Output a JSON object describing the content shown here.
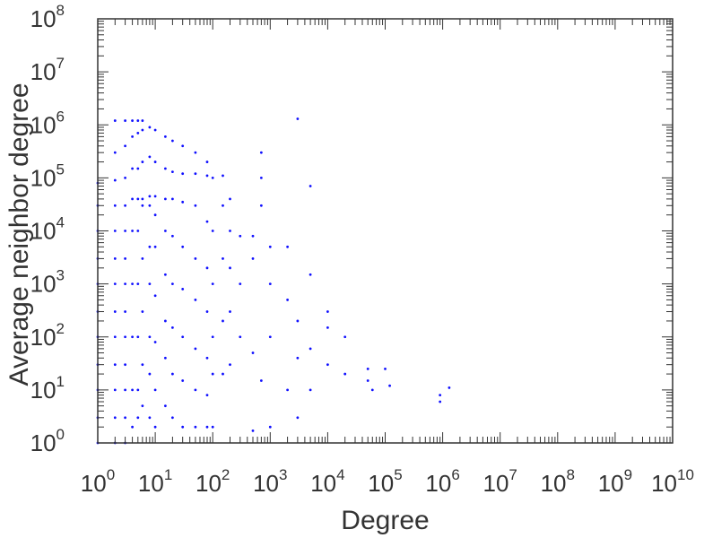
{
  "chart_data": {
    "type": "scatter",
    "title": "",
    "xlabel": "Degree",
    "ylabel": "Average neighbor degree",
    "x_scale": "log",
    "y_scale": "log",
    "xlim": [
      1,
      10000000000
    ],
    "ylim": [
      1,
      100000000
    ],
    "grid": false,
    "legend": "none",
    "marker_color": "#1010ff",
    "x_ticks": [
      {
        "base": "10",
        "exp": "0"
      },
      {
        "base": "10",
        "exp": "1"
      },
      {
        "base": "10",
        "exp": "2"
      },
      {
        "base": "10",
        "exp": "3"
      },
      {
        "base": "10",
        "exp": "4"
      },
      {
        "base": "10",
        "exp": "5"
      },
      {
        "base": "10",
        "exp": "6"
      },
      {
        "base": "10",
        "exp": "7"
      },
      {
        "base": "10",
        "exp": "8"
      },
      {
        "base": "10",
        "exp": "9"
      },
      {
        "base": "10",
        "exp": "10"
      }
    ],
    "y_ticks": [
      {
        "base": "10",
        "exp": "0"
      },
      {
        "base": "10",
        "exp": "1"
      },
      {
        "base": "10",
        "exp": "2"
      },
      {
        "base": "10",
        "exp": "3"
      },
      {
        "base": "10",
        "exp": "4"
      },
      {
        "base": "10",
        "exp": "5"
      },
      {
        "base": "10",
        "exp": "6"
      },
      {
        "base": "10",
        "exp": "7"
      },
      {
        "base": "10",
        "exp": "8"
      }
    ],
    "points": [
      [
        1,
        1
      ],
      [
        1,
        3
      ],
      [
        1,
        10
      ],
      [
        1,
        30
      ],
      [
        1,
        100
      ],
      [
        1,
        300
      ],
      [
        1,
        1000
      ],
      [
        1,
        3000
      ],
      [
        1,
        10000
      ],
      [
        1,
        30000
      ],
      [
        1,
        80000
      ],
      [
        2,
        1
      ],
      [
        2,
        3
      ],
      [
        2,
        10
      ],
      [
        2,
        30
      ],
      [
        2,
        100
      ],
      [
        2,
        300
      ],
      [
        2,
        1000
      ],
      [
        2,
        3000
      ],
      [
        2,
        10000
      ],
      [
        2,
        30000
      ],
      [
        2,
        90000
      ],
      [
        2,
        300000
      ],
      [
        2,
        1200000
      ],
      [
        3,
        1
      ],
      [
        3,
        3
      ],
      [
        3,
        10
      ],
      [
        3,
        30
      ],
      [
        3,
        100
      ],
      [
        3,
        300
      ],
      [
        3,
        1000
      ],
      [
        3,
        3000
      ],
      [
        3,
        10000
      ],
      [
        3,
        30000
      ],
      [
        3,
        100000
      ],
      [
        3,
        400000
      ],
      [
        3,
        1200000
      ],
      [
        4,
        2
      ],
      [
        4,
        10
      ],
      [
        4,
        100
      ],
      [
        4,
        1000
      ],
      [
        4,
        10000
      ],
      [
        4,
        40000
      ],
      [
        4,
        150000
      ],
      [
        4,
        600000
      ],
      [
        4,
        1200000
      ],
      [
        5,
        3
      ],
      [
        5,
        10
      ],
      [
        5,
        100
      ],
      [
        5,
        1000
      ],
      [
        5,
        10000
      ],
      [
        5,
        40000
      ],
      [
        5,
        150000
      ],
      [
        5,
        700000
      ],
      [
        5,
        1200000
      ],
      [
        6,
        5
      ],
      [
        6,
        30
      ],
      [
        6,
        300
      ],
      [
        6,
        3000
      ],
      [
        6,
        30000
      ],
      [
        6,
        40000
      ],
      [
        6,
        200000
      ],
      [
        6,
        800000
      ],
      [
        6,
        1200000
      ],
      [
        8,
        3
      ],
      [
        8,
        20
      ],
      [
        8,
        100
      ],
      [
        8,
        1000
      ],
      [
        8,
        5000
      ],
      [
        8,
        30000
      ],
      [
        8,
        45000
      ],
      [
        8,
        250000
      ],
      [
        8,
        900000
      ],
      [
        10,
        2
      ],
      [
        10,
        10
      ],
      [
        10,
        80
      ],
      [
        10,
        600
      ],
      [
        10,
        5000
      ],
      [
        10,
        20000
      ],
      [
        10,
        45000
      ],
      [
        10,
        200000
      ],
      [
        10,
        800000
      ],
      [
        15,
        5
      ],
      [
        15,
        40
      ],
      [
        15,
        200
      ],
      [
        15,
        1500
      ],
      [
        15,
        10000
      ],
      [
        15,
        40000
      ],
      [
        15,
        150000
      ],
      [
        15,
        600000
      ],
      [
        20,
        3
      ],
      [
        20,
        20
      ],
      [
        20,
        150
      ],
      [
        20,
        1000
      ],
      [
        20,
        8000
      ],
      [
        20,
        40000
      ],
      [
        20,
        130000
      ],
      [
        20,
        500000
      ],
      [
        30,
        2
      ],
      [
        30,
        15
      ],
      [
        30,
        100
      ],
      [
        30,
        800
      ],
      [
        30,
        5000
      ],
      [
        30,
        35000
      ],
      [
        30,
        120000
      ],
      [
        30,
        400000
      ],
      [
        50,
        2
      ],
      [
        50,
        10
      ],
      [
        50,
        60
      ],
      [
        50,
        500
      ],
      [
        50,
        3000
      ],
      [
        50,
        30000
      ],
      [
        50,
        120000
      ],
      [
        50,
        300000
      ],
      [
        80,
        2
      ],
      [
        80,
        8
      ],
      [
        80,
        40
      ],
      [
        80,
        300
      ],
      [
        80,
        2000
      ],
      [
        80,
        15000
      ],
      [
        80,
        110000
      ],
      [
        80,
        200000
      ],
      [
        100,
        2
      ],
      [
        100,
        20
      ],
      [
        100,
        100
      ],
      [
        100,
        1000
      ],
      [
        100,
        10000
      ],
      [
        100,
        100000
      ],
      [
        150,
        20
      ],
      [
        150,
        200
      ],
      [
        150,
        3000
      ],
      [
        150,
        30000
      ],
      [
        150,
        110000
      ],
      [
        200,
        30
      ],
      [
        200,
        300
      ],
      [
        200,
        2000
      ],
      [
        200,
        10000
      ],
      [
        200,
        40000
      ],
      [
        300,
        100
      ],
      [
        300,
        1000
      ],
      [
        300,
        8000
      ],
      [
        500,
        1.7
      ],
      [
        500,
        50
      ],
      [
        500,
        3000
      ],
      [
        500,
        8000
      ],
      [
        700,
        15
      ],
      [
        700,
        300000
      ],
      [
        700,
        30000
      ],
      [
        700,
        100000
      ],
      [
        1000,
        2
      ],
      [
        1000,
        100
      ],
      [
        1000,
        1000
      ],
      [
        1000,
        5000
      ],
      [
        2000,
        10
      ],
      [
        2000,
        500
      ],
      [
        2000,
        5000
      ],
      [
        3000,
        1300000
      ],
      [
        3000,
        3
      ],
      [
        3000,
        40
      ],
      [
        3000,
        200
      ],
      [
        5000,
        1500
      ],
      [
        5000,
        70000
      ],
      [
        5000,
        10
      ],
      [
        5000,
        60
      ],
      [
        10000,
        30
      ],
      [
        10000,
        150
      ],
      [
        10000,
        300
      ],
      [
        20000,
        20
      ],
      [
        20000,
        100
      ],
      [
        50000,
        15
      ],
      [
        50000,
        25
      ],
      [
        60000,
        10
      ],
      [
        100000,
        25
      ],
      [
        120000,
        12
      ],
      [
        900000,
        6
      ],
      [
        900000,
        8
      ],
      [
        1300000,
        11
      ]
    ]
  }
}
